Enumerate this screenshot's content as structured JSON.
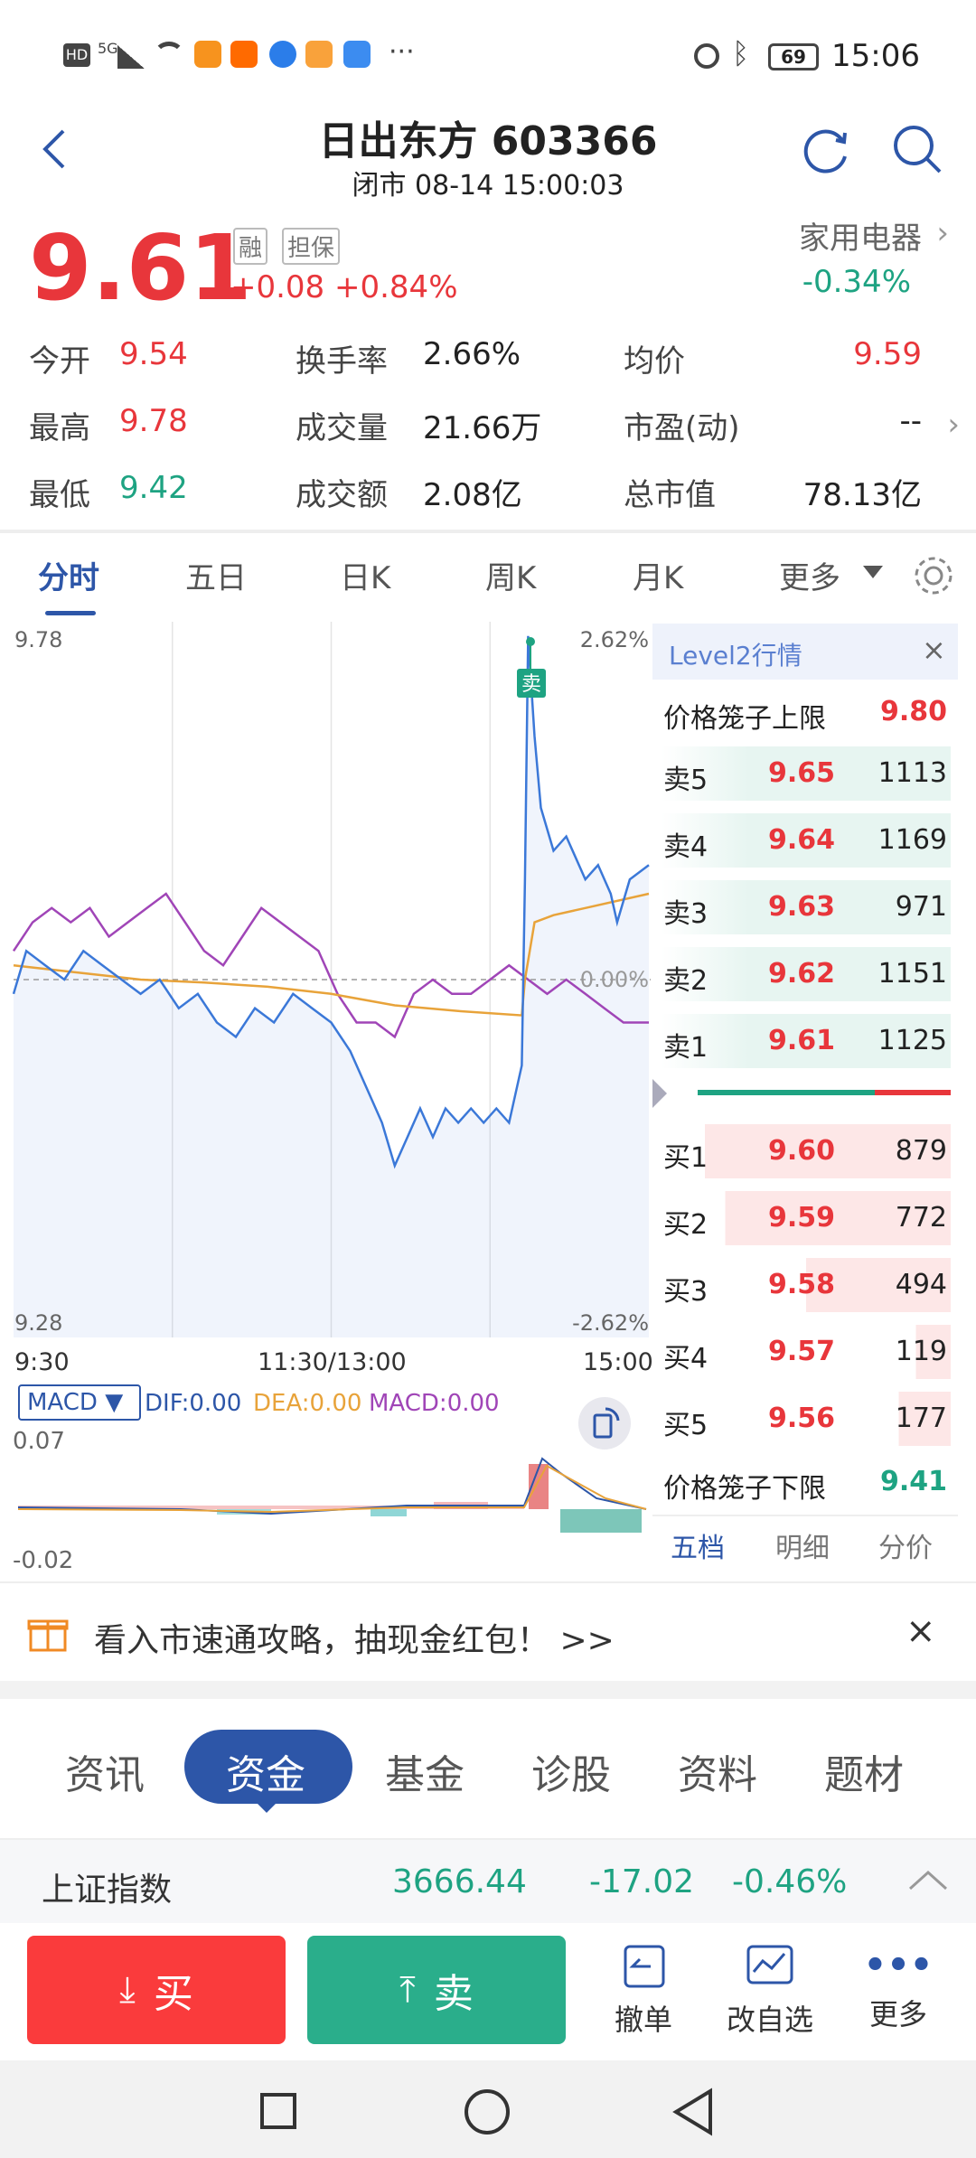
{
  "status_bar": {
    "time": "15:06",
    "battery": "69",
    "network": "5G"
  },
  "header": {
    "title": "日出东方 603366",
    "subtitle": "闭市 08-14 15:00:03"
  },
  "quote": {
    "price": "9.61",
    "badges": [
      "融",
      "担保"
    ],
    "change": "+0.08",
    "change_pct": "+0.84%",
    "sector_name": "家用电器",
    "sector_change": "-0.34%",
    "fields": [
      {
        "label": "今开",
        "value": "9.54"
      },
      {
        "label": "换手率",
        "value": "2.66%"
      },
      {
        "label": "均价",
        "value": "9.59"
      },
      {
        "label": "最高",
        "value": "9.78"
      },
      {
        "label": "成交量",
        "value": "21.66万"
      },
      {
        "label": "市盈(动)",
        "value": "--"
      },
      {
        "label": "最低",
        "value": "9.42"
      },
      {
        "label": "成交额",
        "value": "2.08亿"
      },
      {
        "label": "总市值",
        "value": "78.13亿"
      }
    ]
  },
  "period_tabs": {
    "items": [
      "分时",
      "五日",
      "日K",
      "周K",
      "月K",
      "更多"
    ],
    "active": "分时"
  },
  "chart_data": {
    "type": "line",
    "title": "",
    "x_labels": [
      "9:30",
      "11:30/13:00",
      "15:00"
    ],
    "y_left": {
      "top": "9.78",
      "bottom": "9.28"
    },
    "y_right": {
      "top": "2.62%",
      "middle": "0.00%",
      "bottom": "-2.62%"
    },
    "ylim": [
      9.28,
      9.78
    ],
    "prev_close": 9.53,
    "sell_marker": "卖",
    "series": [
      {
        "name": "price",
        "color": "#3b78d8",
        "x": [
          0,
          0.02,
          0.05,
          0.08,
          0.11,
          0.14,
          0.17,
          0.2,
          0.23,
          0.26,
          0.29,
          0.32,
          0.35,
          0.38,
          0.41,
          0.44,
          0.47,
          0.5,
          0.53,
          0.56,
          0.58,
          0.6,
          0.62,
          0.64,
          0.66,
          0.68,
          0.7,
          0.72,
          0.74,
          0.76,
          0.78,
          0.8,
          0.805,
          0.81,
          0.82,
          0.83,
          0.85,
          0.87,
          0.9,
          0.92,
          0.94,
          0.95,
          0.97,
          1.0
        ],
        "y": [
          9.52,
          9.55,
          9.54,
          9.53,
          9.55,
          9.54,
          9.53,
          9.52,
          9.53,
          9.51,
          9.52,
          9.5,
          9.49,
          9.51,
          9.5,
          9.52,
          9.51,
          9.5,
          9.48,
          9.45,
          9.43,
          9.4,
          9.42,
          9.44,
          9.42,
          9.44,
          9.43,
          9.44,
          9.43,
          9.44,
          9.43,
          9.47,
          9.6,
          9.77,
          9.7,
          9.65,
          9.62,
          9.63,
          9.6,
          9.61,
          9.59,
          9.57,
          9.6,
          9.61
        ]
      },
      {
        "name": "avg",
        "color": "#e8a33a",
        "x": [
          0,
          0.1,
          0.2,
          0.3,
          0.4,
          0.5,
          0.6,
          0.7,
          0.8,
          0.805,
          0.82,
          0.85,
          0.9,
          1.0
        ],
        "y": [
          9.54,
          9.535,
          9.53,
          9.528,
          9.525,
          9.52,
          9.512,
          9.508,
          9.505,
          9.53,
          9.57,
          9.575,
          9.58,
          9.59
        ]
      },
      {
        "name": "index",
        "color": "#a045b7",
        "x": [
          0,
          0.03,
          0.06,
          0.09,
          0.12,
          0.15,
          0.18,
          0.21,
          0.24,
          0.27,
          0.3,
          0.33,
          0.36,
          0.39,
          0.42,
          0.45,
          0.48,
          0.51,
          0.54,
          0.57,
          0.6,
          0.63,
          0.66,
          0.69,
          0.72,
          0.75,
          0.78,
          0.81,
          0.84,
          0.87,
          0.9,
          0.93,
          0.96,
          1.0
        ],
        "y": [
          9.55,
          9.57,
          9.58,
          9.57,
          9.58,
          9.56,
          9.57,
          9.58,
          9.59,
          9.57,
          9.55,
          9.54,
          9.56,
          9.58,
          9.57,
          9.56,
          9.55,
          9.52,
          9.5,
          9.5,
          9.49,
          9.52,
          9.53,
          9.52,
          9.52,
          9.53,
          9.54,
          9.53,
          9.52,
          9.53,
          9.52,
          9.51,
          9.5,
          9.5
        ]
      }
    ]
  },
  "macd": {
    "dropdown": "MACD",
    "dif": "DIF:0.00",
    "dea": "DEA:0.00",
    "macd": "MACD:0.00",
    "y_top": "0.07",
    "y_bottom": "-0.02"
  },
  "level2": {
    "title": "Level2行情",
    "upper_limit_label": "价格笼子上限",
    "upper_limit_value": "9.80",
    "asks": [
      {
        "label": "卖5",
        "price": "9.65",
        "volume": "1113"
      },
      {
        "label": "卖4",
        "price": "9.64",
        "volume": "1169"
      },
      {
        "label": "卖3",
        "price": "9.63",
        "volume": "971"
      },
      {
        "label": "卖2",
        "price": "9.62",
        "volume": "1151"
      },
      {
        "label": "卖1",
        "price": "9.61",
        "volume": "1125"
      }
    ],
    "bids": [
      {
        "label": "买1",
        "price": "9.60",
        "volume": "879"
      },
      {
        "label": "买2",
        "price": "9.59",
        "volume": "772"
      },
      {
        "label": "买3",
        "price": "9.58",
        "volume": "494"
      },
      {
        "label": "买4",
        "price": "9.57",
        "volume": "119"
      },
      {
        "label": "买5",
        "price": "9.56",
        "volume": "177"
      }
    ],
    "lower_limit_label": "价格笼子下限",
    "lower_limit_value": "9.41",
    "bottom_tabs": [
      "五档",
      "明细",
      "分价"
    ]
  },
  "banner": {
    "text": "看入市速通攻略，抽现金红包！ >>"
  },
  "bottom_tabs": {
    "items": [
      "资讯",
      "资金",
      "基金",
      "诊股",
      "资料",
      "题材"
    ],
    "active": "资金"
  },
  "index_bar": {
    "name": "上证指数",
    "value": "3666.44",
    "change": "-17.02",
    "change_pct": "-0.46%"
  },
  "actions": {
    "buy": "买",
    "sell": "卖",
    "cancel": "撤单",
    "edit_watch": "改自选",
    "more": "更多"
  },
  "colors": {
    "red": "#e8363b",
    "green": "#1ea382",
    "blue": "#2d56a8",
    "price_line": "#3b78d8",
    "avg_line": "#e8a33a",
    "index_line": "#a045b7"
  }
}
